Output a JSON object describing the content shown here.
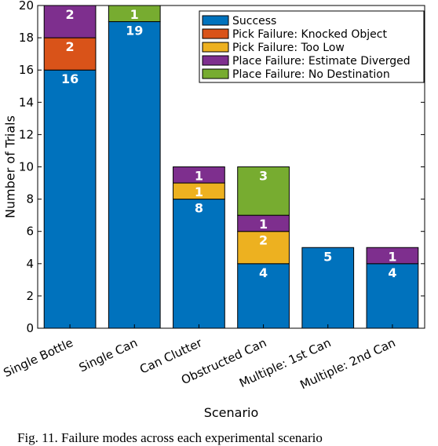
{
  "caption": "Fig. 11.   Failure modes across each experimental scenario",
  "chart_data": {
    "type": "bar",
    "stacked": true,
    "categories": [
      "Single Bottle",
      "Single Can",
      "Can Clutter",
      "Obstructed Can",
      "Multiple: 1st Can",
      "Multiple: 2nd Can"
    ],
    "series": [
      {
        "name": "Success",
        "color": "#0072BD",
        "values": [
          16,
          19,
          8,
          4,
          5,
          4
        ]
      },
      {
        "name": "Pick Failure: Knocked Object",
        "color": "#D95319",
        "values": [
          2,
          0,
          0,
          0,
          0,
          0
        ]
      },
      {
        "name": "Pick Failure: Too Low",
        "color": "#EDB120",
        "values": [
          0,
          0,
          1,
          2,
          0,
          0
        ]
      },
      {
        "name": "Place Failure: Estimate Diverged",
        "color": "#7E2F8E",
        "values": [
          2,
          0,
          1,
          1,
          0,
          1
        ]
      },
      {
        "name": "Place Failure: No Destination",
        "color": "#77AC30",
        "values": [
          0,
          1,
          0,
          3,
          0,
          0
        ]
      }
    ],
    "xlabel": "Scenario",
    "ylabel": "Number of Trials",
    "ylim": [
      0,
      20
    ],
    "yticks": [
      0,
      2,
      4,
      6,
      8,
      10,
      12,
      14,
      16,
      18,
      20
    ],
    "grid": false,
    "legend_position": "top-right"
  }
}
